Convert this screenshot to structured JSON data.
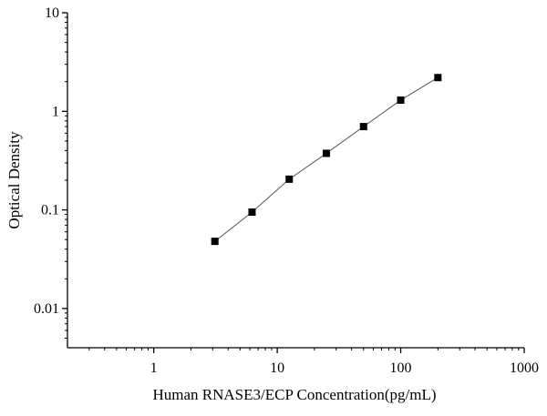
{
  "chart_data": {
    "type": "scatter",
    "xlabel": "Human RNASE3/ECP Concentration(pg/mL)",
    "ylabel": "Optical Density",
    "x_scale": "log",
    "y_scale": "log",
    "xlim": [
      0.2,
      1000
    ],
    "ylim": [
      0.004,
      10
    ],
    "x_ticks": [
      1,
      10,
      100,
      1000
    ],
    "x_tick_labels": [
      "1",
      "10",
      "100",
      "1000"
    ],
    "y_ticks": [
      0.01,
      0.1,
      1,
      10
    ],
    "y_tick_labels": [
      "0.01",
      "0.1",
      "1",
      "10"
    ],
    "grid": false,
    "legend": "none",
    "series": [
      {
        "marker": "square",
        "color": "#000000",
        "line_color": "#555555",
        "points": [
          {
            "x": 3.125,
            "y": 0.048
          },
          {
            "x": 6.25,
            "y": 0.095
          },
          {
            "x": 12.5,
            "y": 0.205
          },
          {
            "x": 25,
            "y": 0.375
          },
          {
            "x": 50,
            "y": 0.7
          },
          {
            "x": 100,
            "y": 1.3
          },
          {
            "x": 200,
            "y": 2.2
          }
        ]
      }
    ]
  }
}
